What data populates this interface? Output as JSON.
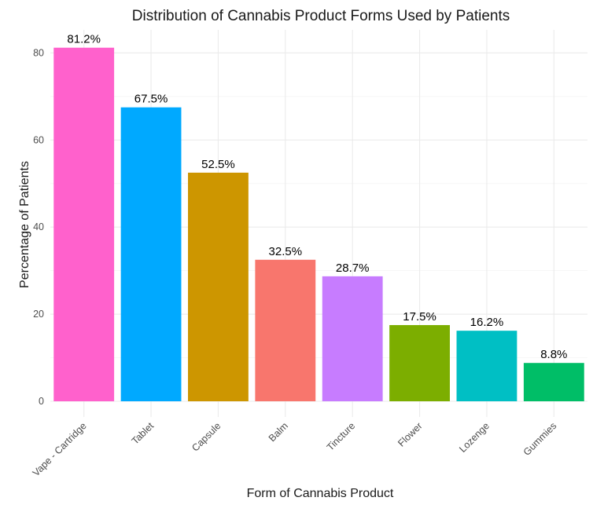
{
  "chart_data": {
    "type": "bar",
    "title": "Distribution of Cannabis Product Forms Used by Patients",
    "xlabel": "Form of Cannabis Product",
    "ylabel": "Percentage of Patients",
    "categories": [
      "Vape - Cartridge",
      "Tablet",
      "Capsule",
      "Balm",
      "Tincture",
      "Flower",
      "Lozenge",
      "Gummies"
    ],
    "values": [
      81.2,
      67.5,
      52.5,
      32.5,
      28.7,
      17.5,
      16.2,
      8.8
    ],
    "data_labels": [
      "81.2%",
      "67.5%",
      "52.5%",
      "32.5%",
      "28.7%",
      "17.5%",
      "16.2%",
      "8.8%"
    ],
    "colors": [
      "#FF61CC",
      "#00A9FF",
      "#CD9600",
      "#F8766D",
      "#C77CFF",
      "#7CAE00",
      "#00BFC4",
      "#00BE67"
    ],
    "y_ticks": [
      0,
      20,
      40,
      60,
      80
    ],
    "y_tick_labels": [
      "0",
      "20",
      "40",
      "60",
      "80"
    ],
    "ylim": [
      0,
      85.3
    ],
    "grid": true,
    "legend": "none"
  }
}
